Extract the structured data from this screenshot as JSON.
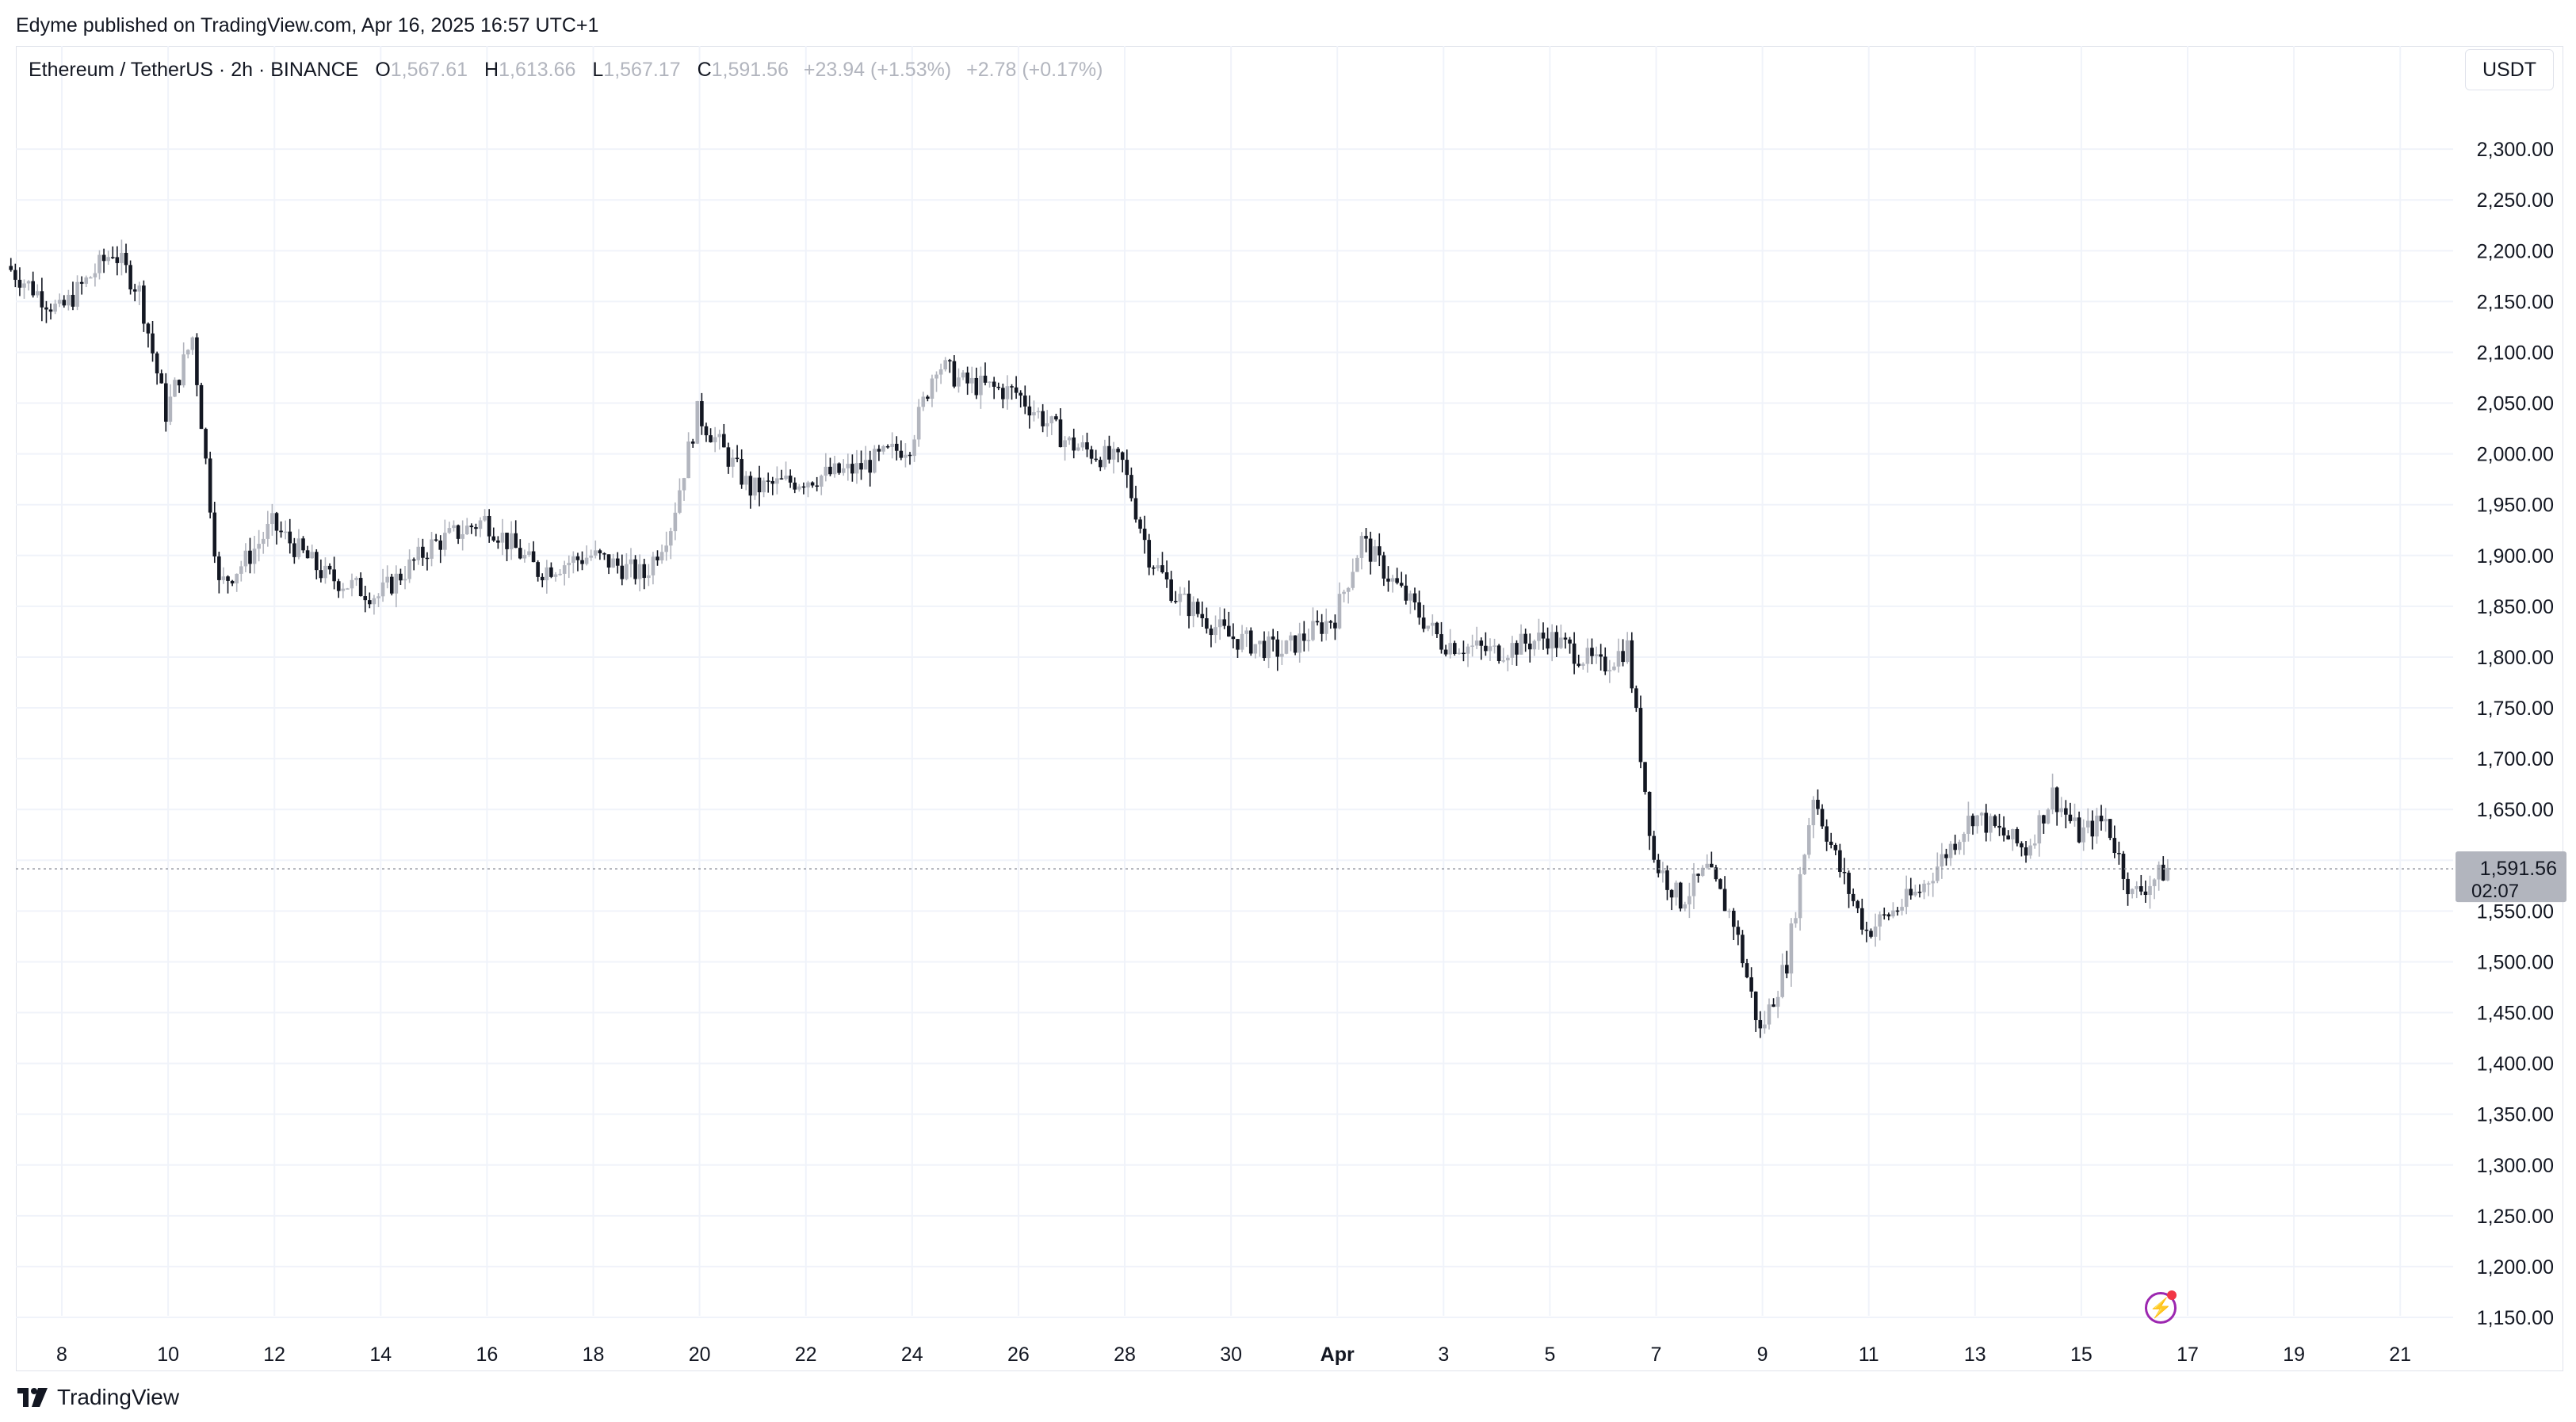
{
  "publish_line": "Edyme published on TradingView.com, Apr 16, 2025 16:57 UTC+1",
  "legend": {
    "symbol": "Ethereum / TetherUS · 2h · BINANCE",
    "o_label": "O",
    "o_value": "1,567.61",
    "h_label": "H",
    "h_value": "1,613.66",
    "l_label": "L",
    "l_value": "1,567.17",
    "c_label": "C",
    "c_value": "1,591.56",
    "change": "+23.94 (+1.53%)",
    "change2": "+2.78 (+0.17%)"
  },
  "currency": "USDT",
  "brand": "TradingView",
  "price_tag": {
    "price": "1,591.56",
    "countdown": "02:07"
  },
  "colors": {
    "up": "#b2b5be",
    "down": "#131722",
    "grid": "#f0f3fa",
    "tag_bg": "#b2b5be",
    "alert": "#9c27b0"
  },
  "icons": {
    "alert": "lightning-alert-icon",
    "logo": "tradingview-logo-icon"
  },
  "chart_data": {
    "type": "candlestick",
    "x_tick_labels": [
      "8",
      "10",
      "12",
      "14",
      "16",
      "18",
      "20",
      "22",
      "24",
      "26",
      "28",
      "30",
      "Apr",
      "3",
      "5",
      "7",
      "9",
      "11",
      "13",
      "15",
      "17",
      "19",
      "21"
    ],
    "y_tick_labels": [
      "2,300.00",
      "2,250.00",
      "2,200.00",
      "2,150.00",
      "2,100.00",
      "2,050.00",
      "2,000.00",
      "1,950.00",
      "1,900.00",
      "1,850.00",
      "1,800.00",
      "1,750.00",
      "1,700.00",
      "1,650.00",
      "1,600.00",
      "1,550.00",
      "1,500.00",
      "1,450.00",
      "1,400.00",
      "1,350.00",
      "1,300.00",
      "1,250.00",
      "1,200.00",
      "1,150.00"
    ],
    "ylim": [
      1130,
      2340
    ],
    "last_price": 1591.56,
    "interval": "2h",
    "closes": [
      {
        "date": "2025-03-07",
        "close": 2185
      },
      {
        "date": "2025-03-08",
        "close": 2140
      },
      {
        "date": "2025-03-09",
        "close": 2200
      },
      {
        "date": "2025-03-09T12",
        "close": 2160
      },
      {
        "date": "2025-03-10",
        "close": 2040
      },
      {
        "date": "2025-03-10T12",
        "close": 2115
      },
      {
        "date": "2025-03-11",
        "close": 1870
      },
      {
        "date": "2025-03-11T12",
        "close": 1895
      },
      {
        "date": "2025-03-12",
        "close": 1930
      },
      {
        "date": "2025-03-13",
        "close": 1880
      },
      {
        "date": "2025-03-14",
        "close": 1860
      },
      {
        "date": "2025-03-15",
        "close": 1910
      },
      {
        "date": "2025-03-16",
        "close": 1935
      },
      {
        "date": "2025-03-17",
        "close": 1885
      },
      {
        "date": "2025-03-18",
        "close": 1900
      },
      {
        "date": "2025-03-19",
        "close": 1880
      },
      {
        "date": "2025-03-19T12",
        "close": 1930
      },
      {
        "date": "2025-03-20",
        "close": 2040
      },
      {
        "date": "2025-03-21",
        "close": 1965
      },
      {
        "date": "2025-03-22",
        "close": 1975
      },
      {
        "date": "2025-03-23",
        "close": 1985
      },
      {
        "date": "2025-03-24",
        "close": 2010
      },
      {
        "date": "2025-03-24T12",
        "close": 2090
      },
      {
        "date": "2025-03-25",
        "close": 2070
      },
      {
        "date": "2025-03-26",
        "close": 2060
      },
      {
        "date": "2025-03-27",
        "close": 2010
      },
      {
        "date": "2025-03-28",
        "close": 1990
      },
      {
        "date": "2025-03-28T12",
        "close": 1900
      },
      {
        "date": "2025-03-29",
        "close": 1860
      },
      {
        "date": "2025-03-30",
        "close": 1820
      },
      {
        "date": "2025-03-31",
        "close": 1805
      },
      {
        "date": "2025-04-01",
        "close": 1840
      },
      {
        "date": "2025-04-01T12",
        "close": 1915
      },
      {
        "date": "2025-04-02",
        "close": 1880
      },
      {
        "date": "2025-04-03",
        "close": 1815
      },
      {
        "date": "2025-04-04",
        "close": 1805
      },
      {
        "date": "2025-04-05",
        "close": 1820
      },
      {
        "date": "2025-04-06",
        "close": 1790
      },
      {
        "date": "2025-04-06T12",
        "close": 1810
      },
      {
        "date": "2025-04-07",
        "close": 1600
      },
      {
        "date": "2025-04-07T12",
        "close": 1560
      },
      {
        "date": "2025-04-08",
        "close": 1590
      },
      {
        "date": "2025-04-08T12",
        "close": 1540
      },
      {
        "date": "2025-04-09",
        "close": 1430
      },
      {
        "date": "2025-04-09T12",
        "close": 1500
      },
      {
        "date": "2025-04-10",
        "close": 1665
      },
      {
        "date": "2025-04-10T12",
        "close": 1590
      },
      {
        "date": "2025-04-11",
        "close": 1530
      },
      {
        "date": "2025-04-12",
        "close": 1570
      },
      {
        "date": "2025-04-13",
        "close": 1645
      },
      {
        "date": "2025-04-14",
        "close": 1610
      },
      {
        "date": "2025-04-14T12",
        "close": 1665
      },
      {
        "date": "2025-04-15",
        "close": 1625
      },
      {
        "date": "2025-04-15T12",
        "close": 1640
      },
      {
        "date": "2025-04-16",
        "close": 1565
      },
      {
        "date": "2025-04-16T16",
        "close": 1591.56
      }
    ]
  }
}
